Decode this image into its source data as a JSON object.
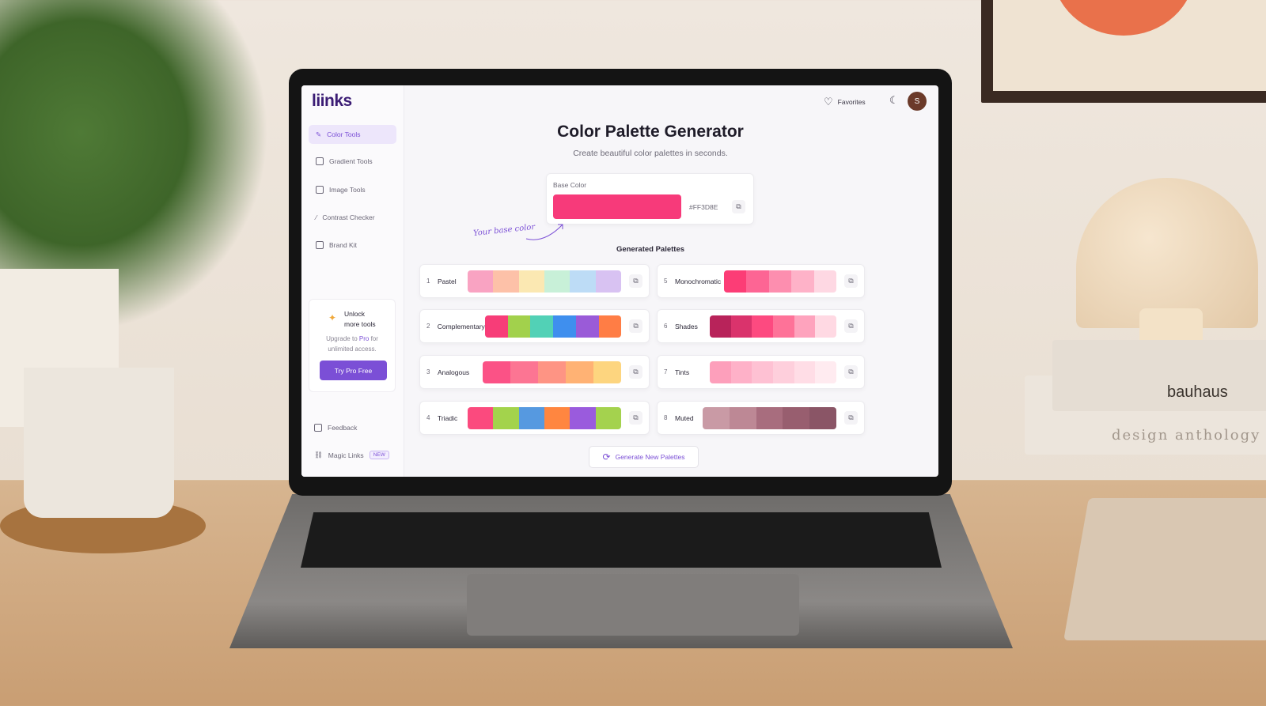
{
  "scene": {
    "book_title_1": "bauhaus",
    "book_title_2": "design anthology"
  },
  "app": {
    "logo": "liinks"
  },
  "sidebar": {
    "items": [
      {
        "label": "Color Tools",
        "icon": "pen-icon",
        "active": true
      },
      {
        "label": "Gradient Tools",
        "icon": "grid-icon"
      },
      {
        "label": "Image Tools",
        "icon": "image-icon"
      },
      {
        "label": "Contrast Checker",
        "icon": "magic-wand-icon"
      },
      {
        "label": "Brand Kit",
        "icon": "clipboard-icon"
      }
    ],
    "promo": {
      "title_1": "Unlock",
      "title_2": "more tools",
      "sub_1": "Upgrade to",
      "pro": "Pro",
      "sub_2": "for",
      "sub_3": "unlimited access.",
      "button": "Try Pro Free"
    },
    "feedback": "Feedback",
    "magic_links": "Magic Links",
    "new_badge": "NEW"
  },
  "header": {
    "favorites": "Favorites",
    "avatar_letter": "S"
  },
  "main": {
    "title": "Color Palette Generator",
    "subtitle": "Create beautiful color palettes in seconds.",
    "base_color": {
      "label": "Base Color",
      "hex": "#FF3D8E",
      "swatch": "#f73a7a"
    },
    "annotation": "Your base color",
    "generated_title": "Generated Palettes",
    "generate_button": "Generate New Palettes",
    "accent": "#7b4fd6"
  },
  "palettes": [
    {
      "num": "1",
      "name": "Pastel",
      "colors": [
        "#f9a3c2",
        "#fdc1a8",
        "#fbe8b2",
        "#c8f0d8",
        "#bddcf6",
        "#d8c2f2"
      ]
    },
    {
      "num": "2",
      "name": "Complementary",
      "colors": [
        "#f73d78",
        "#a2d14c",
        "#52d1b6",
        "#3f8fee",
        "#9a5bd8",
        "#ff7d45"
      ]
    },
    {
      "num": "3",
      "name": "Analogous",
      "colors": [
        "#fb5286",
        "#fc7593",
        "#fe9484",
        "#ffb274",
        "#fdd57f"
      ]
    },
    {
      "num": "4",
      "name": "Triadic",
      "colors": [
        "#fb4a7e",
        "#a3d34c",
        "#5699e0",
        "#ff8640",
        "#9a5bdd",
        "#a4d24e"
      ]
    },
    {
      "num": "5",
      "name": "Monochromatic",
      "colors": [
        "#fc3d76",
        "#fd6594",
        "#fd8eaf",
        "#feb2c8",
        "#fed8e3"
      ]
    },
    {
      "num": "6",
      "name": "Shades",
      "colors": [
        "#b8235a",
        "#da336c",
        "#fd4a80",
        "#fe7298",
        "#fea3bd",
        "#ffd9e3"
      ]
    },
    {
      "num": "7",
      "name": "Tints",
      "colors": [
        "#fd9fbb",
        "#feb1c8",
        "#fec1d3",
        "#fecfdc",
        "#ffdde6",
        "#ffebf0"
      ]
    },
    {
      "num": "8",
      "name": "Muted",
      "colors": [
        "#c99aa5",
        "#bd8895",
        "#a86d7e",
        "#985e6f",
        "#8a5566"
      ]
    }
  ]
}
